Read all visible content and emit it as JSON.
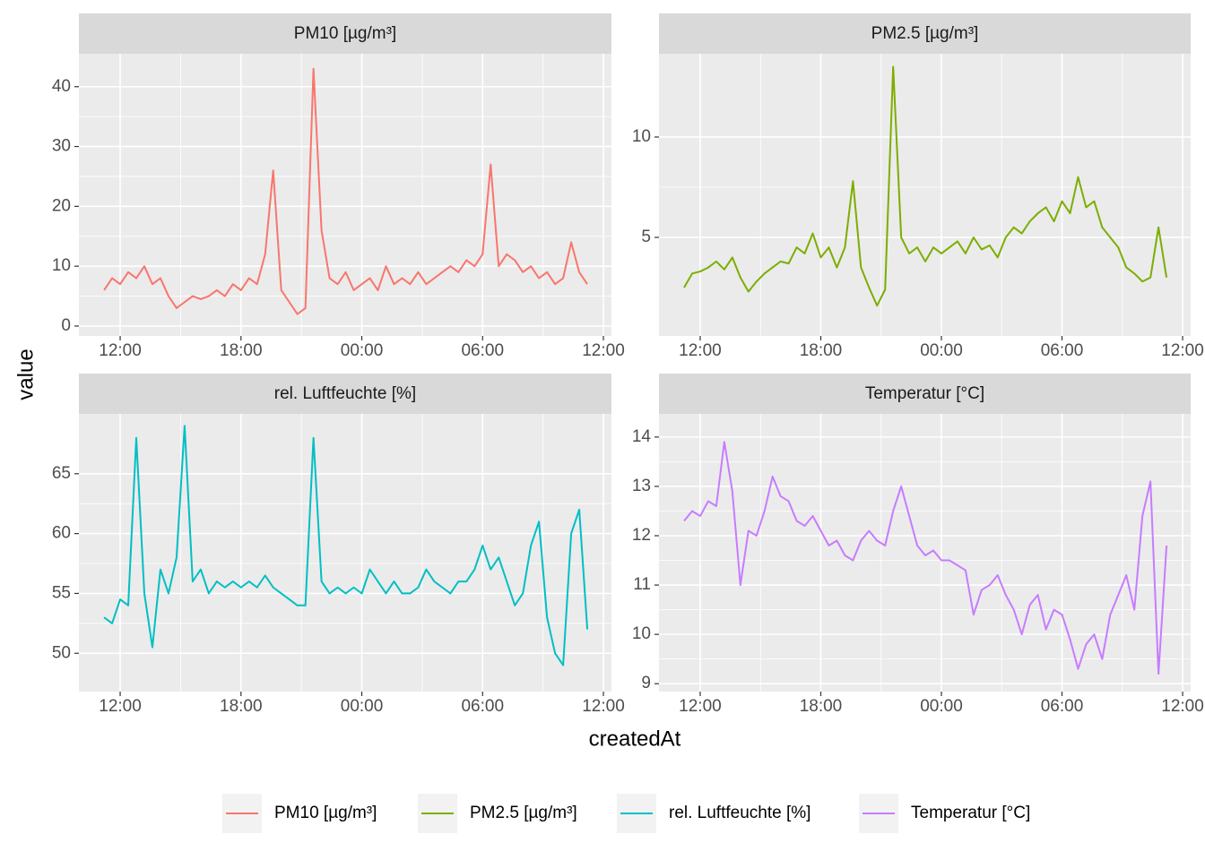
{
  "chart_data": [
    {
      "type": "line",
      "title": "PM10 [µg/m³]",
      "x": [
        -0.8,
        -0.4,
        0,
        0.4,
        0.8,
        1.2,
        1.6,
        2,
        2.4,
        2.8,
        3.2,
        3.6,
        4,
        4.4,
        4.8,
        5.2,
        5.6,
        6,
        6.4,
        6.8,
        7.2,
        7.6,
        8,
        8.4,
        8.8,
        9.2,
        9.6,
        10,
        10.4,
        10.8,
        11.2,
        11.6,
        12,
        12.4,
        12.8,
        13.2,
        13.6,
        14,
        14.4,
        14.8,
        15.2,
        15.6,
        16,
        16.4,
        16.8,
        17.2,
        17.6,
        18,
        18.4,
        18.8,
        19.2,
        19.6,
        20,
        20.4,
        20.8,
        21.2,
        21.6,
        22,
        22.4,
        22.8,
        23.2
      ],
      "series": [
        {
          "name": "PM10 [µg/m³]",
          "color": "#F8766D",
          "values": [
            6,
            8,
            7,
            9,
            8,
            10,
            7,
            8,
            5,
            3,
            4,
            5,
            4.5,
            5,
            6,
            5,
            7,
            6,
            8,
            7,
            12,
            26,
            6,
            4,
            2,
            3,
            43,
            16,
            8,
            7,
            9,
            6,
            7,
            8,
            6,
            10,
            7,
            8,
            7,
            9,
            7,
            8,
            9,
            10,
            9,
            11,
            10,
            12,
            27,
            10,
            12,
            11,
            9,
            10,
            8,
            9,
            7,
            8,
            14,
            9,
            7
          ]
        }
      ],
      "xlim": [
        -2.05,
        24.4
      ],
      "xticks": [
        {
          "value": 0,
          "label": "12:00"
        },
        {
          "value": 6,
          "label": "18:00"
        },
        {
          "value": 12,
          "label": "00:00"
        },
        {
          "value": 18,
          "label": "06:00"
        },
        {
          "value": 24,
          "label": "12:00"
        }
      ],
      "ylim": [
        -1.65,
        45.5
      ],
      "yticks": [
        0,
        10,
        20,
        30,
        40
      ],
      "grid": true
    },
    {
      "type": "line",
      "title": "PM2.5 [µg/m³]",
      "x": [
        -0.8,
        -0.4,
        0,
        0.4,
        0.8,
        1.2,
        1.6,
        2,
        2.4,
        2.8,
        3.2,
        3.6,
        4,
        4.4,
        4.8,
        5.2,
        5.6,
        6,
        6.4,
        6.8,
        7.2,
        7.6,
        8,
        8.4,
        8.8,
        9.2,
        9.6,
        10,
        10.4,
        10.8,
        11.2,
        11.6,
        12,
        12.4,
        12.8,
        13.2,
        13.6,
        14,
        14.4,
        14.8,
        15.2,
        15.6,
        16,
        16.4,
        16.8,
        17.2,
        17.6,
        18,
        18.4,
        18.8,
        19.2,
        19.6,
        20,
        20.4,
        20.8,
        21.2,
        21.6,
        22,
        22.4,
        22.8,
        23.2
      ],
      "series": [
        {
          "name": "PM2.5 [µg/m³]",
          "color": "#7CAE00",
          "values": [
            2.5,
            3.2,
            3.3,
            3.5,
            3.8,
            3.4,
            4.0,
            3.0,
            2.3,
            2.8,
            3.2,
            3.5,
            3.8,
            3.7,
            4.5,
            4.2,
            5.2,
            4.0,
            4.5,
            3.5,
            4.5,
            7.8,
            3.5,
            2.5,
            1.6,
            2.4,
            13.5,
            5.0,
            4.2,
            4.5,
            3.8,
            4.5,
            4.2,
            4.5,
            4.8,
            4.2,
            5.0,
            4.4,
            4.6,
            4.0,
            5.0,
            5.5,
            5.2,
            5.8,
            6.2,
            6.5,
            5.8,
            6.8,
            6.2,
            8.0,
            6.5,
            6.8,
            5.5,
            5.0,
            4.5,
            3.5,
            3.2,
            2.8,
            3.0,
            5.5,
            3.0
          ]
        }
      ],
      "xlim": [
        -2.05,
        24.4
      ],
      "xticks": [
        {
          "value": 0,
          "label": "12:00"
        },
        {
          "value": 6,
          "label": "18:00"
        },
        {
          "value": 12,
          "label": "00:00"
        },
        {
          "value": 18,
          "label": "06:00"
        },
        {
          "value": 24,
          "label": "12:00"
        }
      ],
      "ylim": [
        0.09,
        14.15
      ],
      "yticks": [
        5,
        10
      ],
      "grid": true
    },
    {
      "type": "line",
      "title": "rel. Luftfeuchte [%]",
      "x": [
        -0.8,
        -0.4,
        0,
        0.4,
        0.8,
        1.2,
        1.6,
        2,
        2.4,
        2.8,
        3.2,
        3.6,
        4,
        4.4,
        4.8,
        5.2,
        5.6,
        6,
        6.4,
        6.8,
        7.2,
        7.6,
        8,
        8.4,
        8.8,
        9.2,
        9.6,
        10,
        10.4,
        10.8,
        11.2,
        11.6,
        12,
        12.4,
        12.8,
        13.2,
        13.6,
        14,
        14.4,
        14.8,
        15.2,
        15.6,
        16,
        16.4,
        16.8,
        17.2,
        17.6,
        18,
        18.4,
        18.8,
        19.2,
        19.6,
        20,
        20.4,
        20.8,
        21.2,
        21.6,
        22,
        22.4,
        22.8,
        23.2
      ],
      "series": [
        {
          "name": "rel. Luftfeuchte [%]",
          "color": "#00BFC4",
          "values": [
            53,
            52.5,
            54.5,
            54,
            68,
            55,
            50.5,
            57,
            55,
            58,
            69,
            56,
            57,
            55,
            56,
            55.5,
            56,
            55.5,
            56,
            55.5,
            56.5,
            55.5,
            55,
            54.5,
            54,
            54,
            68,
            56,
            55,
            55.5,
            55,
            55.5,
            55,
            57,
            56,
            55,
            56,
            55,
            55,
            55.5,
            57,
            56,
            55.5,
            55,
            56,
            56,
            57,
            59,
            57,
            58,
            56,
            54,
            55,
            59,
            61,
            53,
            50,
            49,
            60,
            62,
            52
          ]
        }
      ],
      "xlim": [
        -2.05,
        24.4
      ],
      "xticks": [
        {
          "value": 0,
          "label": "12:00"
        },
        {
          "value": 6,
          "label": "18:00"
        },
        {
          "value": 12,
          "label": "00:00"
        },
        {
          "value": 18,
          "label": "06:00"
        },
        {
          "value": 24,
          "label": "12:00"
        }
      ],
      "ylim": [
        46.8,
        70.0
      ],
      "yticks": [
        50,
        55,
        60,
        65
      ],
      "grid": true
    },
    {
      "type": "line",
      "title": "Temperatur [°C]",
      "x": [
        -0.8,
        -0.4,
        0,
        0.4,
        0.8,
        1.2,
        1.6,
        2,
        2.4,
        2.8,
        3.2,
        3.6,
        4,
        4.4,
        4.8,
        5.2,
        5.6,
        6,
        6.4,
        6.8,
        7.2,
        7.6,
        8,
        8.4,
        8.8,
        9.2,
        9.6,
        10,
        10.4,
        10.8,
        11.2,
        11.6,
        12,
        12.4,
        12.8,
        13.2,
        13.6,
        14,
        14.4,
        14.8,
        15.2,
        15.6,
        16,
        16.4,
        16.8,
        17.2,
        17.6,
        18,
        18.4,
        18.8,
        19.2,
        19.6,
        20,
        20.4,
        20.8,
        21.2,
        21.6,
        22,
        22.4,
        22.8,
        23.2
      ],
      "series": [
        {
          "name": "Temperatur [°C]",
          "color": "#C77CFF",
          "values": [
            12.3,
            12.5,
            12.4,
            12.7,
            12.6,
            13.9,
            12.9,
            11.0,
            12.1,
            12.0,
            12.5,
            13.2,
            12.8,
            12.7,
            12.3,
            12.2,
            12.4,
            12.1,
            11.8,
            11.9,
            11.6,
            11.5,
            11.9,
            12.1,
            11.9,
            11.8,
            12.5,
            13.0,
            12.4,
            11.8,
            11.6,
            11.7,
            11.5,
            11.5,
            11.4,
            11.3,
            10.4,
            10.9,
            11.0,
            11.2,
            10.8,
            10.5,
            10.0,
            10.6,
            10.8,
            10.1,
            10.5,
            10.4,
            9.9,
            9.3,
            9.8,
            10.0,
            9.5,
            10.4,
            10.8,
            11.2,
            10.5,
            12.4,
            13.1,
            9.2,
            11.8
          ]
        }
      ],
      "xlim": [
        -2.05,
        24.4
      ],
      "xticks": [
        {
          "value": 0,
          "label": "12:00"
        },
        {
          "value": 6,
          "label": "18:00"
        },
        {
          "value": 12,
          "label": "00:00"
        },
        {
          "value": 18,
          "label": "06:00"
        },
        {
          "value": 24,
          "label": "12:00"
        }
      ],
      "ylim": [
        8.84,
        14.47
      ],
      "yticks": [
        9,
        10,
        11,
        12,
        13,
        14
      ],
      "grid": true
    }
  ],
  "x_label": "createdAt",
  "y_label": "value",
  "legend": "bottom"
}
